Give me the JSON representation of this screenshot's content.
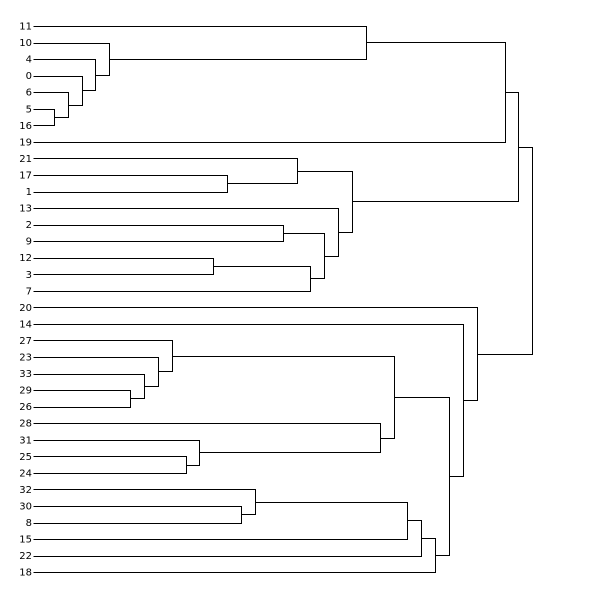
{
  "chart_data": {
    "type": "dendrogram",
    "orientation": "left",
    "leaves": [
      "11",
      "10",
      "4",
      "0",
      "6",
      "5",
      "16",
      "19",
      "21",
      "17",
      "1",
      "13",
      "2",
      "9",
      "12",
      "3",
      "7",
      "20",
      "14",
      "27",
      "23",
      "33",
      "29",
      "26",
      "28",
      "31",
      "25",
      "24",
      "32",
      "30",
      "8",
      "15",
      "22",
      "18"
    ],
    "merges": [
      {
        "a": "L:5",
        "b": "L:16",
        "h": 1.5
      },
      {
        "a": "L:6",
        "b": "N:0",
        "h": 2.5
      },
      {
        "a": "L:0",
        "b": "N:1",
        "h": 3.5
      },
      {
        "a": "L:4",
        "b": "N:2",
        "h": 4.5
      },
      {
        "a": "L:10",
        "b": "N:3",
        "h": 5.5
      },
      {
        "a": "L:11",
        "b": "N:4",
        "h": 24.0
      },
      {
        "a": "N:5",
        "b": "L:19",
        "h": 34.0
      },
      {
        "a": "L:17",
        "b": "L:1",
        "h": 14.0
      },
      {
        "a": "L:21",
        "b": "N:7",
        "h": 19.0
      },
      {
        "a": "L:2",
        "b": "L:9",
        "h": 18.0
      },
      {
        "a": "L:12",
        "b": "L:3",
        "h": 13.0
      },
      {
        "a": "N:10",
        "b": "L:7",
        "h": 20.0
      },
      {
        "a": "N:9",
        "b": "N:11",
        "h": 21.0
      },
      {
        "a": "L:13",
        "b": "N:12",
        "h": 22.0
      },
      {
        "a": "N:8",
        "b": "N:13",
        "h": 23.0
      },
      {
        "a": "N:6",
        "b": "N:14",
        "h": 35.0
      },
      {
        "a": "L:29",
        "b": "L:26",
        "h": 7.0
      },
      {
        "a": "L:33",
        "b": "N:16",
        "h": 8.0
      },
      {
        "a": "L:23",
        "b": "N:17",
        "h": 9.0
      },
      {
        "a": "L:27",
        "b": "N:18",
        "h": 10.0
      },
      {
        "a": "L:25",
        "b": "L:24",
        "h": 11.0
      },
      {
        "a": "L:31",
        "b": "N:20",
        "h": 12.0
      },
      {
        "a": "L:28",
        "b": "N:21",
        "h": 25.0
      },
      {
        "a": "N:19",
        "b": "N:22",
        "h": 26.0
      },
      {
        "a": "L:30",
        "b": "L:8",
        "h": 15.0
      },
      {
        "a": "L:32",
        "b": "N:24",
        "h": 16.0
      },
      {
        "a": "N:25",
        "b": "L:15",
        "h": 27.0
      },
      {
        "a": "N:26",
        "b": "L:22",
        "h": 28.0
      },
      {
        "a": "N:27",
        "b": "L:18",
        "h": 29.0
      },
      {
        "a": "N:23",
        "b": "N:28",
        "h": 30.0
      },
      {
        "a": "L:14",
        "b": "N:29",
        "h": 31.0
      },
      {
        "a": "L:20",
        "b": "N:30",
        "h": 32.0
      },
      {
        "a": "N:15",
        "b": "N:31",
        "h": 36.0
      }
    ],
    "hlim": [
      0,
      38
    ],
    "title": "",
    "xlabel": "",
    "ylabel": "",
    "grid": false,
    "legend": "none",
    "colors": {
      "line": "#000000",
      "text": "#000000",
      "background": "#ffffff"
    }
  }
}
